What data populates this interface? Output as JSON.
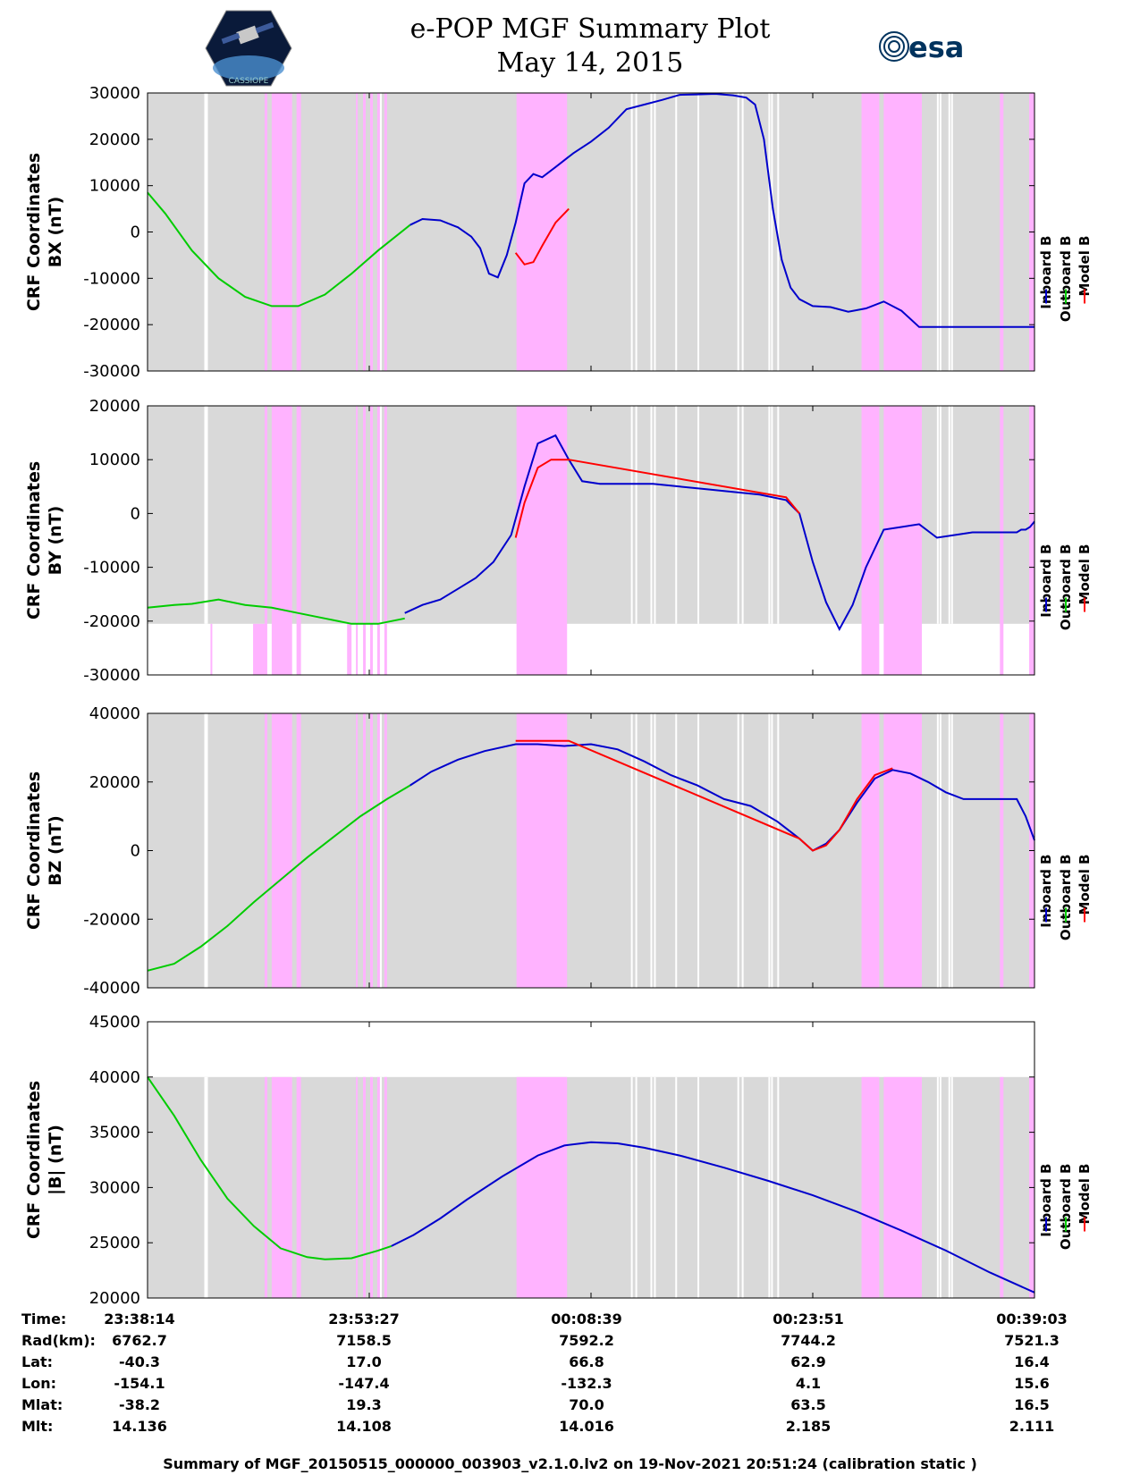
{
  "header": {
    "title": "e-POP MGF Summary Plot",
    "date": "May 14, 2015",
    "left_logo_caption": "CASSIOPE",
    "right_logo_text": "esa"
  },
  "colors": {
    "background_gray": "#d9d9d9",
    "highlight_magenta": "#ffb3ff",
    "inboard": "#0000cc",
    "outboard": "#00cc00",
    "model": "#ff0000"
  },
  "chart_data": [
    {
      "type": "line",
      "panel": "BX",
      "ylabel_line1": "CRF Coordinates",
      "ylabel_line2": "BX (nT)",
      "ylim": [
        -30000,
        30000
      ],
      "yticks": [
        30000,
        20000,
        10000,
        0,
        -10000,
        -20000,
        -30000
      ],
      "ytick_labels": [
        "30000",
        "20000",
        "10000",
        "0",
        "-10000",
        "-20000",
        "-30000"
      ],
      "legend": [
        "Inboard B",
        "Outboard B",
        "Model B"
      ],
      "gray_top": 30000,
      "series": [
        {
          "name": "Outboard B",
          "color": "#00cc00",
          "x": [
            0,
            2,
            5,
            8,
            11,
            14,
            17,
            20,
            23,
            26,
            29.6
          ],
          "y": [
            8500,
            4000,
            -4000,
            -10000,
            -14000,
            -16000,
            -16000,
            -13500,
            -9000,
            -4000,
            1500
          ]
        },
        {
          "name": "Inboard B",
          "color": "#0000cc",
          "x": [
            29.6,
            31,
            33,
            35,
            36.5,
            37.5,
            38.5,
            39.5,
            40.5,
            41.5,
            42.5,
            43.5,
            44.5,
            46,
            48,
            50,
            52,
            54,
            56,
            58,
            60,
            62,
            64,
            66,
            67.5,
            68.5,
            69.5,
            70.5,
            71.5,
            72.5,
            73.5,
            75,
            77,
            79,
            81,
            83,
            85,
            87,
            89,
            90.5,
            92,
            94,
            95.5,
            96.5,
            97.5,
            98.5,
            100
          ],
          "y": [
            1500,
            2800,
            2500,
            1000,
            -1000,
            -3500,
            -9000,
            -9800,
            -5000,
            2000,
            10500,
            12500,
            11800,
            14000,
            17000,
            19500,
            22500,
            26500,
            27500,
            28500,
            29600,
            29700,
            29800,
            29500,
            29000,
            27500,
            20000,
            5000,
            -6000,
            -12000,
            -14500,
            -16000,
            -16200,
            -17200,
            -16500,
            -15000,
            -17000,
            -20500,
            -20500,
            -20500,
            -20500,
            -20500,
            -20500,
            -20500,
            -20500,
            -20500,
            -20500
          ]
        },
        {
          "name": "Model B",
          "color": "#ff0000",
          "x": [
            41.5,
            42.5,
            43.5,
            44.5,
            46,
            47.5
          ],
          "y": [
            -4500,
            -7000,
            -6500,
            -3000,
            2000,
            5000
          ]
        }
      ]
    },
    {
      "type": "line",
      "panel": "BY",
      "ylabel_line1": "CRF Coordinates",
      "ylabel_line2": "BY (nT)",
      "ylim": [
        -30000,
        20000
      ],
      "yticks": [
        20000,
        10000,
        0,
        -10000,
        -20000,
        -30000
      ],
      "ytick_labels": [
        "20000",
        "10000",
        "0",
        "-10000",
        "-20000",
        "-30000"
      ],
      "legend": [
        "Inboard B",
        "Outboard B",
        "Model B"
      ],
      "gray_top": 20000,
      "series": [
        {
          "name": "Outboard B",
          "color": "#00cc00",
          "x": [
            0,
            3,
            5,
            8,
            11,
            14,
            17,
            20,
            23,
            26,
            29
          ],
          "y": [
            -17500,
            -17000,
            -16800,
            -16000,
            -17000,
            -17500,
            -18500,
            -19500,
            -20500,
            -20500,
            -19500
          ]
        },
        {
          "name": "Inboard B",
          "color": "#0000cc",
          "x": [
            29,
            31,
            33,
            35,
            37,
            39,
            41,
            42.5,
            44,
            46,
            47.5,
            49,
            51,
            54,
            57,
            60,
            63,
            66,
            69,
            72,
            73.5,
            75,
            76.5,
            78,
            79.5,
            81,
            83,
            85,
            87,
            89,
            91,
            93,
            94.5,
            96,
            97,
            98,
            98.5,
            99,
            99.5,
            100
          ],
          "y": [
            -18500,
            -17000,
            -16000,
            -14000,
            -12000,
            -9000,
            -4000,
            5000,
            13000,
            14500,
            10000,
            6000,
            5500,
            5500,
            5500,
            5000,
            4500,
            4000,
            3500,
            2500,
            0,
            -9000,
            -16500,
            -21500,
            -17000,
            -10000,
            -3000,
            -2500,
            -2000,
            -4500,
            -4000,
            -3500,
            -3500,
            -3500,
            -3500,
            -3500,
            -3000,
            -3000,
            -2500,
            -1500
          ]
        },
        {
          "name": "Model B",
          "color": "#ff0000",
          "x": [
            41.5,
            42.5,
            44,
            45.5,
            47.5,
            72,
            73.5
          ],
          "y": [
            -4500,
            2000,
            8500,
            10000,
            10000,
            3000,
            0
          ]
        }
      ]
    },
    {
      "type": "line",
      "panel": "BZ",
      "ylabel_line1": "CRF Coordinates",
      "ylabel_line2": "BZ (nT)",
      "ylim": [
        -40000,
        40000
      ],
      "yticks": [
        40000,
        20000,
        0,
        -20000,
        -40000
      ],
      "ytick_labels": [
        "40000",
        "20000",
        "0",
        "-20000",
        "-40000"
      ],
      "legend": [
        "Inboard B",
        "Outboard B",
        "Model B"
      ],
      "gray_top": 40000,
      "series": [
        {
          "name": "Outboard B",
          "color": "#00cc00",
          "x": [
            0,
            3,
            6,
            9,
            12,
            15,
            18,
            21,
            24,
            27,
            29.6
          ],
          "y": [
            -35000,
            -33000,
            -28000,
            -22000,
            -15000,
            -8500,
            -2000,
            4000,
            10000,
            15000,
            19000
          ]
        },
        {
          "name": "Inboard B",
          "color": "#0000cc",
          "x": [
            29.6,
            32,
            35,
            38,
            41.5,
            44,
            47,
            50,
            53,
            56,
            59,
            62,
            65,
            68,
            71,
            73.5,
            75,
            76.5,
            78,
            80,
            82,
            84,
            86,
            88,
            90,
            92,
            93.5,
            95,
            96.5,
            98,
            99,
            100
          ],
          "y": [
            19000,
            23000,
            26500,
            29000,
            31000,
            31000,
            30500,
            31000,
            29500,
            26000,
            22000,
            19000,
            15000,
            13000,
            8500,
            3500,
            0,
            2000,
            6000,
            14000,
            21000,
            23500,
            22500,
            20000,
            17000,
            15000,
            15000,
            15000,
            15000,
            15000,
            10000,
            3000
          ]
        },
        {
          "name": "Model B",
          "color": "#ff0000",
          "x": [
            41.5,
            47.5,
            73.5,
            75,
            76.5,
            78,
            80,
            82,
            84
          ],
          "y": [
            32000,
            32000,
            3500,
            0,
            1500,
            6000,
            15000,
            22000,
            24000
          ]
        }
      ]
    },
    {
      "type": "line",
      "panel": "|B|",
      "ylabel_line1": "CRF Coordinates",
      "ylabel_line2": "|B| (nT)",
      "ylim": [
        20000,
        45000
      ],
      "yticks": [
        45000,
        40000,
        35000,
        30000,
        25000,
        20000
      ],
      "ytick_labels": [
        "45000",
        "40000",
        "35000",
        "30000",
        "25000",
        "20000"
      ],
      "legend": [
        "Inboard B",
        "Outboard B",
        "Model B"
      ],
      "gray_top": 40000,
      "series": [
        {
          "name": "Outboard B",
          "color": "#00cc00",
          "x": [
            0,
            3,
            6,
            9,
            12,
            15,
            18,
            20,
            23,
            26,
            27.5
          ],
          "y": [
            40000,
            36500,
            32500,
            29000,
            26500,
            24500,
            23700,
            23500,
            23600,
            24300,
            24700
          ]
        },
        {
          "name": "Inboard B",
          "color": "#0000cc",
          "x": [
            27.5,
            30,
            33,
            36,
            40,
            44,
            47,
            50,
            53,
            56,
            60,
            65,
            70,
            75,
            80,
            85,
            90,
            95,
            100
          ],
          "y": [
            24700,
            25700,
            27200,
            28900,
            31000,
            32900,
            33800,
            34100,
            34000,
            33600,
            32900,
            31800,
            30600,
            29300,
            27800,
            26100,
            24300,
            22300,
            20500
          ]
        }
      ]
    }
  ],
  "x_axis": {
    "tick_positions": [
      0,
      25,
      50,
      75,
      100
    ],
    "magenta_bands": [
      [
        13.2,
        13.5
      ],
      [
        14.0,
        16.3
      ],
      [
        16.8,
        17.3
      ],
      [
        23.5,
        23.7
      ],
      [
        24.3,
        24.6
      ],
      [
        25.1,
        25.4
      ],
      [
        25.9,
        26.2
      ],
      [
        26.7,
        27.0
      ],
      [
        41.6,
        47.3
      ],
      [
        80.5,
        82.5
      ],
      [
        83.0,
        87.3
      ],
      [
        96.1,
        96.5
      ],
      [
        99.4,
        100
      ]
    ],
    "white_gaps": [
      6.4,
      6.6,
      26.0,
      26.2,
      54.5,
      55.0,
      56.7,
      57.1,
      59.5,
      62.0,
      66.5,
      67.0,
      70.0,
      70.3,
      71.0,
      89.0,
      89.3,
      90.3,
      90.6
    ],
    "by_white_bands": [
      [
        7.1,
        7.3
      ],
      [
        11.9,
        13.4
      ],
      [
        22.5,
        23.0
      ]
    ]
  },
  "info_table": {
    "labels": [
      "Time:",
      "Rad(km):",
      "Lat:",
      "Lon:",
      "Mlat:",
      "Mlt:"
    ],
    "rows": [
      [
        "23:38:14",
        "23:53:27",
        "00:08:39",
        "00:23:51",
        "00:39:03"
      ],
      [
        "6762.7",
        "7158.5",
        "7592.2",
        "7744.2",
        "7521.3"
      ],
      [
        "-40.3",
        "17.0",
        "66.8",
        "62.9",
        "16.4"
      ],
      [
        "-154.1",
        "-147.4",
        "-132.3",
        "4.1",
        "15.6"
      ],
      [
        "-38.2",
        "19.3",
        "70.0",
        "63.5",
        "16.5"
      ],
      [
        "14.136",
        "14.108",
        "14.016",
        "2.185",
        "2.111"
      ]
    ]
  },
  "footer": "Summary of MGF_20150515_000000_003903_v2.1.0.lv2 on 19-Nov-2021 20:51:24 (calibration static )"
}
